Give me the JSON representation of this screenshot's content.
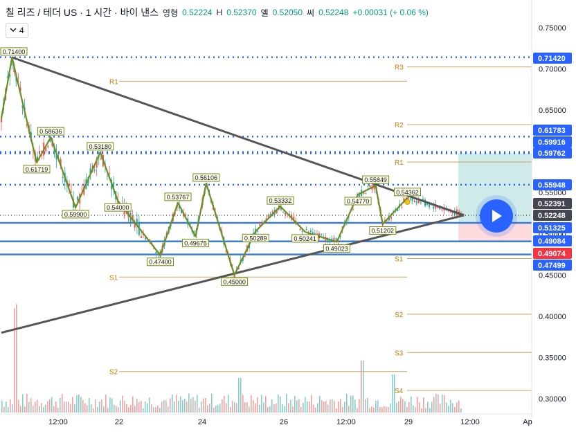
{
  "header": {
    "symbol": "칠 리즈 / 테더 US · 1 시간 · 바이 낸스",
    "o_label": "영형",
    "o_value": "0.52224",
    "h_label": "H",
    "h_value": "0.52370",
    "l_label": "엘",
    "l_value": "0.52050",
    "c_label": "씨",
    "c_value": "0.52248",
    "change": "+0.00031 (+ 0.06 %)"
  },
  "indicator_toggle": {
    "label": "4",
    "icon": "chevron-down-icon"
  },
  "play_button": {
    "icon": "play-icon"
  },
  "colors": {
    "pattern": "#6b8e23",
    "trend": "#555555",
    "dotted": "#2962ff",
    "pivot": "#d4a15a",
    "pivot_text": "#cc7a00",
    "blue_solid": "#3a7bd5",
    "red_label": "#f23645",
    "dark_label": "#434651",
    "candle_up": "#26a69a",
    "candle_down": "#ef5350"
  },
  "chart_data": {
    "type": "line",
    "y_axis": {
      "ticks": [
        "0.75000",
        "0.70000",
        "0.65000",
        "0.55000",
        "0.50000",
        "0.45000",
        "0.40000",
        "0.35000",
        "0.30000"
      ],
      "range": [
        0.28,
        0.77
      ],
      "side": "right"
    },
    "x_axis": {
      "ticks": [
        "12:00",
        "22",
        "24",
        "26",
        "12:00",
        "29",
        "12:00",
        "Ap"
      ]
    },
    "price_labels": [
      {
        "value": "0.71420",
        "style": "blue"
      },
      {
        "value": "0.61783",
        "style": "blue"
      },
      {
        "value": "0.59916",
        "style": "blue"
      },
      {
        "value": "0.59762",
        "style": "blue"
      },
      {
        "value": "0.55948",
        "style": "blue"
      },
      {
        "value": "0.52391",
        "style": "dark"
      },
      {
        "value": "0.52248",
        "style": "dark"
      },
      {
        "value": "0.51325",
        "style": "blue"
      },
      {
        "value": "0.49084",
        "style": "blue"
      },
      {
        "value": "0.49074",
        "style": "red"
      },
      {
        "value": "0.47499",
        "style": "blue"
      }
    ],
    "dotted_levels": [
      0.7142,
      0.61783,
      0.59916,
      0.59762,
      0.55948
    ],
    "solid_levels": [
      0.51325,
      0.49084,
      0.47499
    ],
    "pivot_lines": [
      {
        "label": "R1",
        "value": 0.685
      },
      {
        "label": "S1",
        "value": 0.4475
      },
      {
        "label": "S2",
        "value": 0.333
      },
      {
        "label": "R3",
        "value": 0.7025
      },
      {
        "label": "R2",
        "value": 0.6325
      },
      {
        "label": "R1",
        "value": 0.587
      },
      {
        "label": "S1",
        "value": 0.47
      },
      {
        "label": "S2",
        "value": 0.4025
      },
      {
        "label": "S3",
        "value": 0.356
      },
      {
        "label": "S4",
        "value": 0.31
      }
    ],
    "zigzag_labels": [
      "0.71400",
      "0.61719",
      "0.58636",
      "0.59900",
      "0.53180",
      "0.54000",
      "0.47400",
      "0.53767",
      "0.49675",
      "0.56106",
      "0.45000",
      "0.50289",
      "0.53332",
      "0.50241",
      "0.49023",
      "0.54770",
      "0.55849",
      "0.51202",
      "0.54362"
    ],
    "zigzag_points": [
      {
        "t": 0,
        "y": 0.64
      },
      {
        "t": 3,
        "y": 0.714
      },
      {
        "t": 10,
        "y": 0.5864
      },
      {
        "t": 14,
        "y": 0.6172
      },
      {
        "t": 21,
        "y": 0.5318
      },
      {
        "t": 28,
        "y": 0.599
      },
      {
        "t": 33,
        "y": 0.54
      },
      {
        "t": 45,
        "y": 0.474
      },
      {
        "t": 50,
        "y": 0.5377
      },
      {
        "t": 55,
        "y": 0.4968
      },
      {
        "t": 58,
        "y": 0.5611
      },
      {
        "t": 66,
        "y": 0.45
      },
      {
        "t": 72,
        "y": 0.5029
      },
      {
        "t": 79,
        "y": 0.5333
      },
      {
        "t": 86,
        "y": 0.5024
      },
      {
        "t": 95,
        "y": 0.4902
      },
      {
        "t": 101,
        "y": 0.5477
      },
      {
        "t": 106,
        "y": 0.5585
      },
      {
        "t": 108,
        "y": 0.512
      },
      {
        "t": 115,
        "y": 0.5436
      }
    ],
    "trend_lines": [
      {
        "from": {
          "t": 3,
          "y": 0.714
        },
        "to": {
          "t": 131,
          "y": 0.5225
        }
      },
      {
        "from": {
          "t": 0,
          "y": 0.38
        },
        "to": {
          "t": 131,
          "y": 0.5225
        }
      }
    ]
  }
}
